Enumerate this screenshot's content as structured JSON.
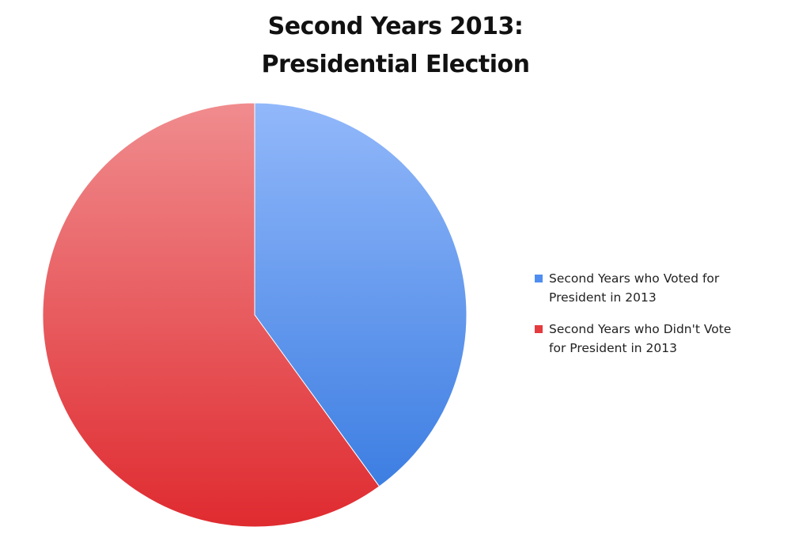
{
  "chart_data": {
    "type": "pie",
    "title": "Second Years 2013:",
    "subtitle": "Presidential Election",
    "legend_position": "right",
    "slices": [
      {
        "label_line1": "Second Years who Voted for",
        "label_line2": "President in 2013",
        "value": 40,
        "color": "#4f8ef0",
        "gradient_top": "#92b8fa",
        "gradient_bottom": "#3d7ee2"
      },
      {
        "label_line1": "Second Years who Didn't Vote",
        "label_line2": "for President in 2013",
        "value": 60,
        "color": "#e53a3e",
        "gradient_top": "#f08c8e",
        "gradient_bottom": "#df2b30"
      }
    ]
  }
}
